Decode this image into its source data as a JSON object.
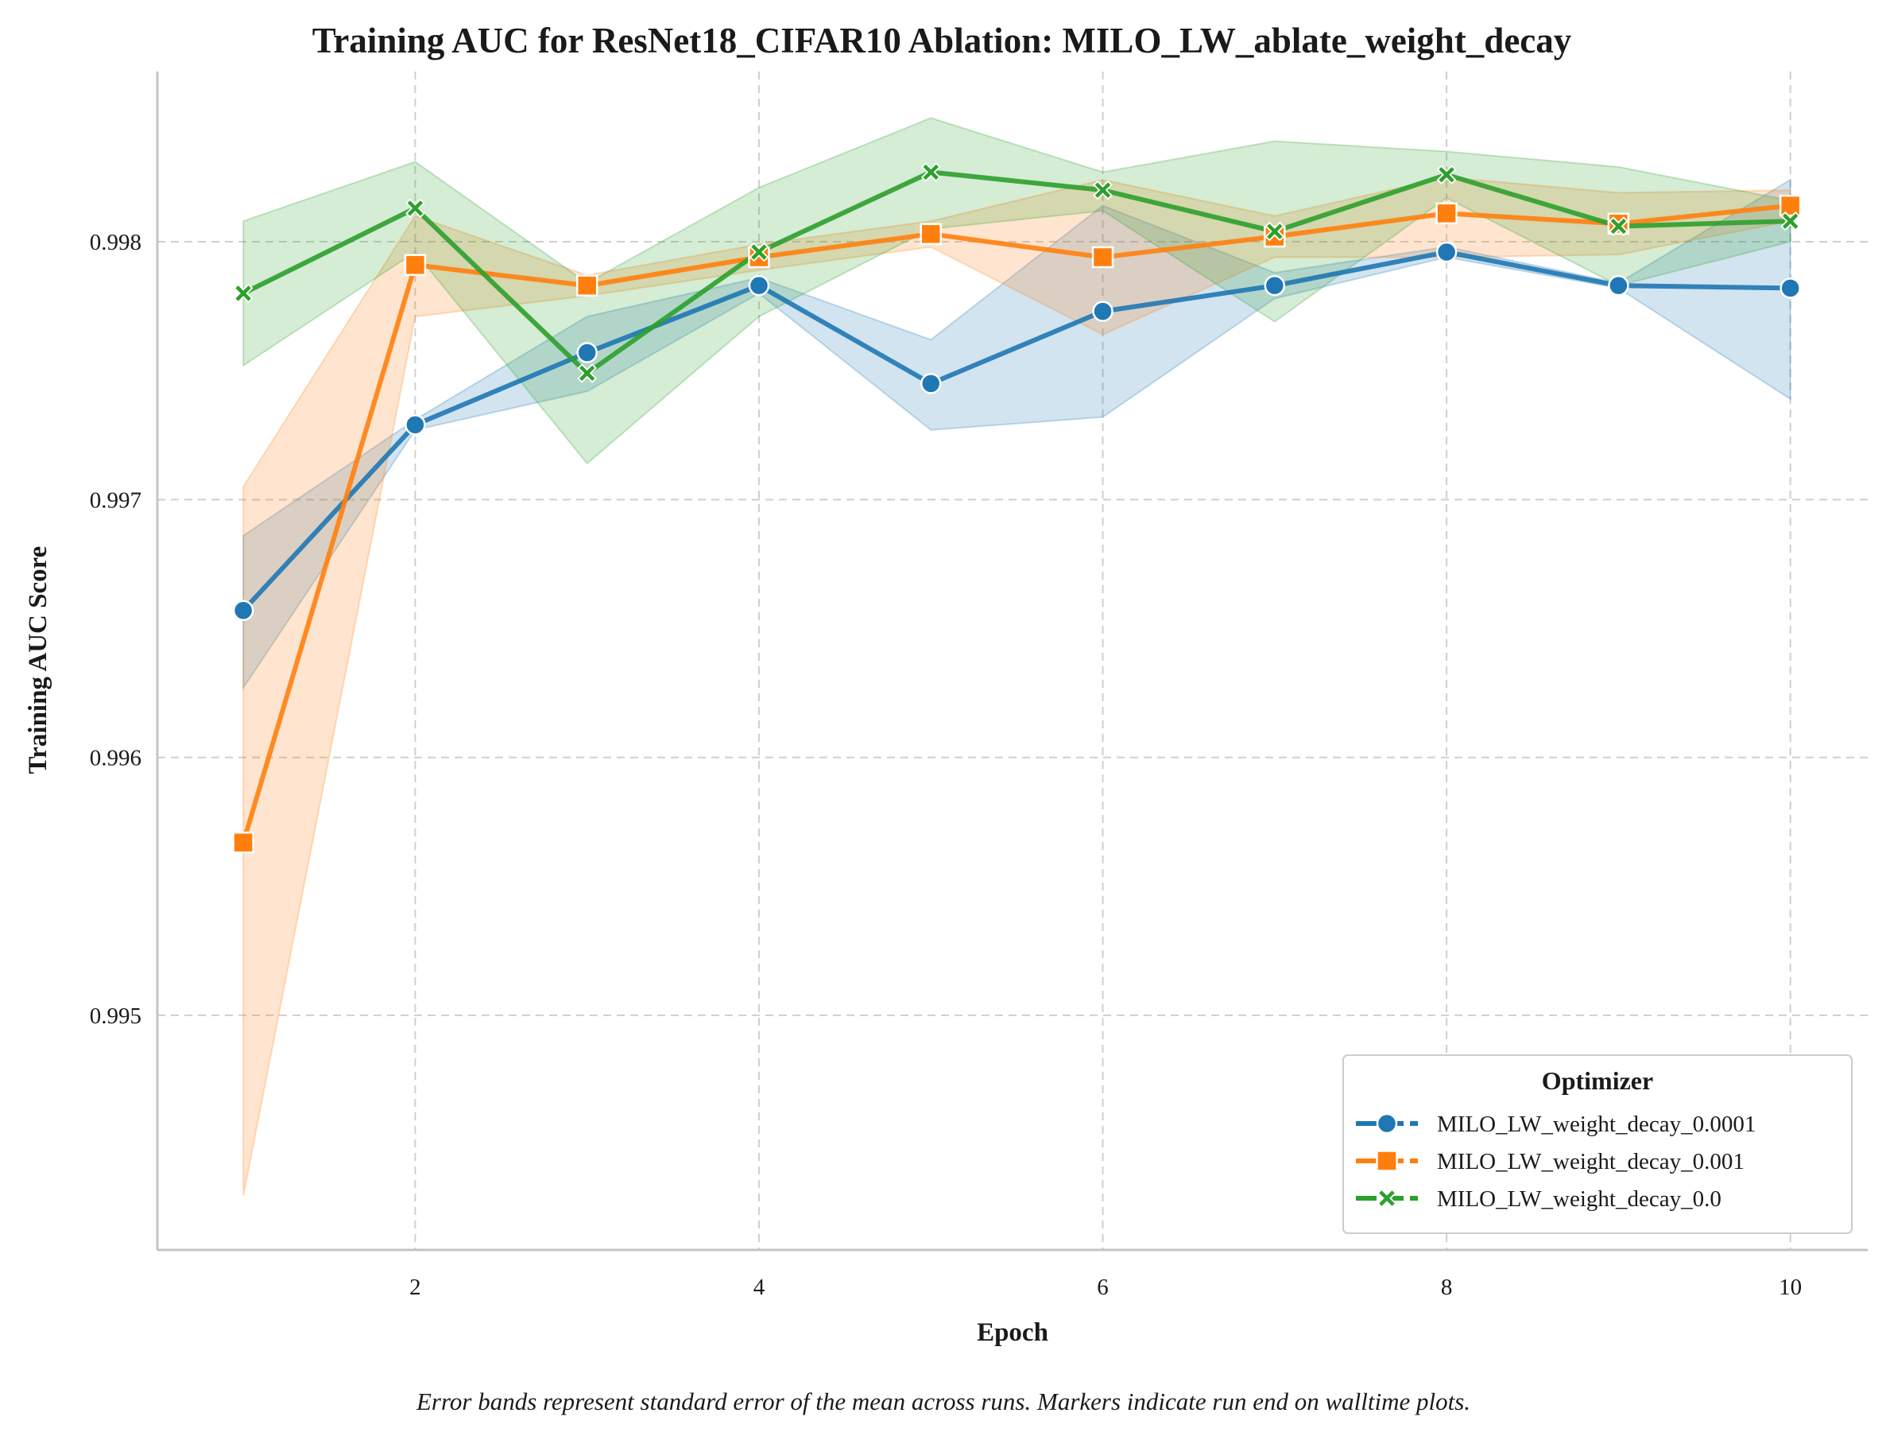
{
  "chart_data": {
    "type": "line",
    "title": "Training AUC for ResNet18_CIFAR10 Ablation: MILO_LW_ablate_weight_decay",
    "xlabel": "Epoch",
    "ylabel": "Training AUC Score",
    "xlim": [
      0.5,
      10.45
    ],
    "ylim": [
      0.99409,
      0.99866
    ],
    "xticks": [
      2,
      4,
      6,
      8,
      10
    ],
    "yticks": [
      0.995,
      0.996,
      0.997,
      0.998
    ],
    "ytick_labels": [
      "0.995",
      "0.996",
      "0.997",
      "0.998"
    ],
    "grid": true,
    "legend_title": "Optimizer",
    "legend_position": "lower-right",
    "caption": "Error bands represent standard error of the mean across runs. Markers indicate run end on walltime plots.",
    "x": [
      1,
      2,
      3,
      4,
      5,
      6,
      7,
      8,
      9,
      10
    ],
    "series": [
      {
        "name": "MILO_LW_weight_decay_0.0001",
        "color": "#1f77b4",
        "marker": "circle",
        "values": [
          0.99657,
          0.99729,
          0.99757,
          0.99783,
          0.99745,
          0.99773,
          0.99783,
          0.99796,
          0.99783,
          0.99782
        ],
        "lower": [
          0.99627,
          0.99727,
          0.99742,
          0.9978,
          0.99727,
          0.99732,
          0.99778,
          0.99794,
          0.99782,
          0.99739
        ],
        "upper": [
          0.99686,
          0.99731,
          0.99771,
          0.99786,
          0.99762,
          0.99814,
          0.99788,
          0.99798,
          0.99784,
          0.99824
        ]
      },
      {
        "name": "MILO_LW_weight_decay_0.001",
        "color": "#ff7f0e",
        "marker": "square",
        "values": [
          0.99567,
          0.99791,
          0.99783,
          0.99794,
          0.99803,
          0.99794,
          0.99802,
          0.99811,
          0.99807,
          0.99814
        ],
        "lower": [
          0.9943,
          0.99771,
          0.99779,
          0.99789,
          0.99798,
          0.99764,
          0.99794,
          0.99794,
          0.99795,
          0.99808
        ],
        "upper": [
          0.99705,
          0.9981,
          0.99787,
          0.99799,
          0.99808,
          0.99824,
          0.9981,
          0.99825,
          0.99819,
          0.9982
        ]
      },
      {
        "name": "MILO_LW_weight_decay_0.0",
        "color": "#2ca02c",
        "marker": "x",
        "values": [
          0.9978,
          0.99813,
          0.99749,
          0.99796,
          0.99827,
          0.9982,
          0.99804,
          0.99826,
          0.99806,
          0.99808
        ],
        "lower": [
          0.99752,
          0.99796,
          0.99714,
          0.99771,
          0.99805,
          0.99812,
          0.99769,
          0.99817,
          0.99783,
          0.998
        ],
        "upper": [
          0.99808,
          0.99831,
          0.99784,
          0.99821,
          0.99848,
          0.99827,
          0.99839,
          0.99835,
          0.99829,
          0.99816
        ]
      }
    ]
  }
}
